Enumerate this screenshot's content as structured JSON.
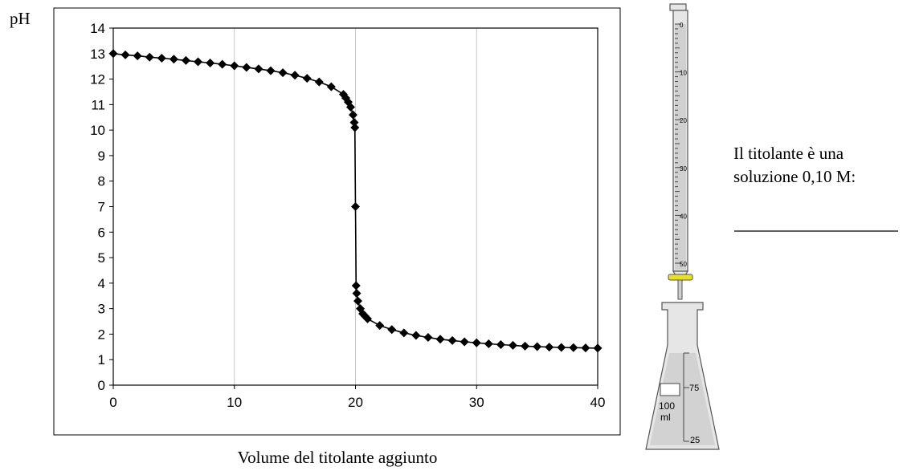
{
  "chart_data": {
    "type": "scatter",
    "title": "",
    "xlabel": "Volume del titolante aggiunto",
    "ylabel": "pH",
    "xlim": [
      0,
      40
    ],
    "ylim": [
      0,
      14
    ],
    "xticks": [
      0,
      10,
      20,
      30,
      40
    ],
    "yticks": [
      0,
      1,
      2,
      3,
      4,
      5,
      6,
      7,
      8,
      9,
      10,
      11,
      12,
      13,
      14
    ],
    "grid": "vertical",
    "marker": "diamond",
    "line": true,
    "series": [
      {
        "x": [
          0,
          1,
          2,
          3,
          4,
          5,
          6,
          7,
          8,
          9,
          10,
          11,
          12,
          13,
          14,
          15,
          16,
          17,
          18,
          19,
          19.2,
          19.4,
          19.6,
          19.8,
          19.9,
          19.95,
          20,
          20.05,
          20.1,
          20.2,
          20.4,
          20.6,
          20.8,
          21,
          22,
          23,
          24,
          25,
          26,
          27,
          28,
          29,
          30,
          31,
          32,
          33,
          34,
          35,
          36,
          37,
          38,
          39,
          40
        ],
        "y": [
          13.0,
          12.95,
          12.91,
          12.86,
          12.82,
          12.78,
          12.73,
          12.68,
          12.63,
          12.58,
          12.52,
          12.46,
          12.4,
          12.33,
          12.25,
          12.15,
          12.03,
          11.89,
          11.7,
          11.4,
          11.26,
          11.1,
          10.9,
          10.6,
          10.3,
          10.1,
          7.0,
          3.9,
          3.6,
          3.3,
          3.0,
          2.8,
          2.7,
          2.6,
          2.34,
          2.18,
          2.05,
          1.95,
          1.87,
          1.8,
          1.75,
          1.7,
          1.66,
          1.62,
          1.59,
          1.56,
          1.53,
          1.51,
          1.49,
          1.48,
          1.47,
          1.46,
          1.45
        ]
      }
    ]
  },
  "side": {
    "line1": "Il titolante è una",
    "line2": "soluzione 0,10 M:"
  },
  "burette": {
    "marks": [
      "0",
      "10",
      "20",
      "30",
      "40",
      "50"
    ]
  },
  "flask": {
    "volume_label_1": "100",
    "volume_label_2": "ml",
    "mark_75": "75",
    "mark_25": "25"
  },
  "colors": {
    "stopcock": "#e8e020",
    "glass": "#e6e6e6"
  }
}
